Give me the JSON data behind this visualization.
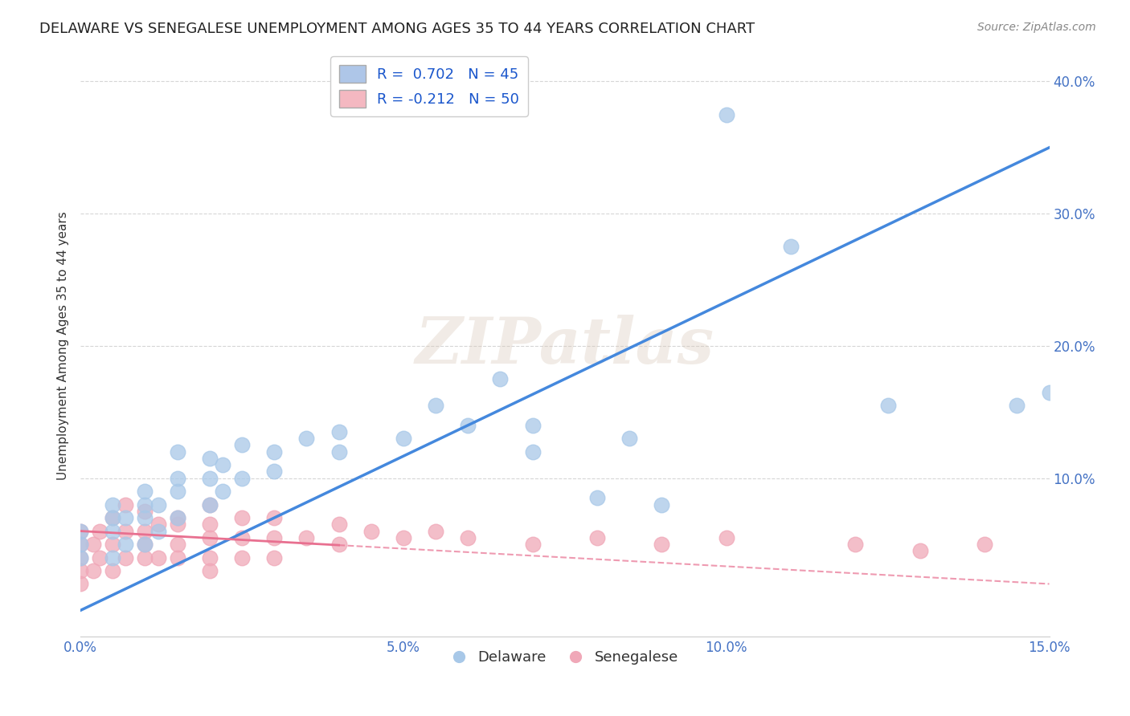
{
  "title": "DELAWARE VS SENEGALESE UNEMPLOYMENT AMONG AGES 35 TO 44 YEARS CORRELATION CHART",
  "source": "Source: ZipAtlas.com",
  "tick_color": "#4472C4",
  "ylabel": "Unemployment Among Ages 35 to 44 years",
  "xlim": [
    0.0,
    0.15
  ],
  "ylim": [
    -0.02,
    0.42
  ],
  "xticks": [
    0.0,
    0.05,
    0.1,
    0.15
  ],
  "xtick_labels": [
    "0.0%",
    "5.0%",
    "10.0%",
    "15.0%"
  ],
  "yticks": [
    0.1,
    0.2,
    0.3,
    0.4
  ],
  "ytick_labels": [
    "10.0%",
    "20.0%",
    "30.0%",
    "40.0%"
  ],
  "watermark": "ZIPatlas",
  "legend_entries": [
    {
      "label": "R =  0.702   N = 45",
      "color": "#AEC6E8"
    },
    {
      "label": "R = -0.212   N = 50",
      "color": "#F4B8C1"
    }
  ],
  "legend_labels_bottom": [
    "Delaware",
    "Senegalese"
  ],
  "blue_scatter_color": "#A8C8E8",
  "pink_scatter_color": "#F0A8B8",
  "blue_line_color": "#4488DD",
  "pink_line_color": "#E87090",
  "background_color": "#FFFFFF",
  "grid_color": "#CCCCCC",
  "title_fontsize": 13,
  "axis_label_fontsize": 11,
  "tick_fontsize": 12,
  "blue_points_x": [
    0.0,
    0.0,
    0.0,
    0.005,
    0.005,
    0.005,
    0.005,
    0.007,
    0.007,
    0.01,
    0.01,
    0.01,
    0.01,
    0.012,
    0.012,
    0.015,
    0.015,
    0.015,
    0.015,
    0.02,
    0.02,
    0.02,
    0.022,
    0.022,
    0.025,
    0.025,
    0.03,
    0.03,
    0.035,
    0.04,
    0.04,
    0.05,
    0.055,
    0.06,
    0.065,
    0.07,
    0.07,
    0.08,
    0.085,
    0.09,
    0.1,
    0.11,
    0.125,
    0.145,
    0.15
  ],
  "blue_points_y": [
    0.04,
    0.05,
    0.06,
    0.04,
    0.06,
    0.07,
    0.08,
    0.05,
    0.07,
    0.05,
    0.07,
    0.08,
    0.09,
    0.06,
    0.08,
    0.07,
    0.09,
    0.1,
    0.12,
    0.08,
    0.1,
    0.115,
    0.09,
    0.11,
    0.1,
    0.125,
    0.105,
    0.12,
    0.13,
    0.12,
    0.135,
    0.13,
    0.155,
    0.14,
    0.175,
    0.12,
    0.14,
    0.085,
    0.13,
    0.08,
    0.375,
    0.275,
    0.155,
    0.155,
    0.165
  ],
  "pink_points_x": [
    0.0,
    0.0,
    0.0,
    0.0,
    0.0,
    0.002,
    0.002,
    0.003,
    0.003,
    0.005,
    0.005,
    0.005,
    0.007,
    0.007,
    0.007,
    0.01,
    0.01,
    0.01,
    0.01,
    0.012,
    0.012,
    0.015,
    0.015,
    0.015,
    0.015,
    0.02,
    0.02,
    0.02,
    0.02,
    0.02,
    0.025,
    0.025,
    0.025,
    0.03,
    0.03,
    0.03,
    0.035,
    0.04,
    0.04,
    0.045,
    0.05,
    0.055,
    0.06,
    0.07,
    0.08,
    0.09,
    0.1,
    0.12,
    0.13,
    0.14
  ],
  "pink_points_y": [
    0.02,
    0.03,
    0.04,
    0.05,
    0.06,
    0.03,
    0.05,
    0.04,
    0.06,
    0.03,
    0.05,
    0.07,
    0.04,
    0.06,
    0.08,
    0.04,
    0.05,
    0.06,
    0.075,
    0.04,
    0.065,
    0.04,
    0.05,
    0.065,
    0.07,
    0.03,
    0.04,
    0.055,
    0.065,
    0.08,
    0.04,
    0.055,
    0.07,
    0.04,
    0.055,
    0.07,
    0.055,
    0.05,
    0.065,
    0.06,
    0.055,
    0.06,
    0.055,
    0.05,
    0.055,
    0.05,
    0.055,
    0.05,
    0.045,
    0.05
  ],
  "blue_line_x0": 0.0,
  "blue_line_y0": 0.0,
  "blue_line_x1": 0.15,
  "blue_line_y1": 0.35,
  "pink_line_x0": 0.0,
  "pink_line_y0": 0.06,
  "pink_line_x1": 0.15,
  "pink_line_y1": 0.02
}
